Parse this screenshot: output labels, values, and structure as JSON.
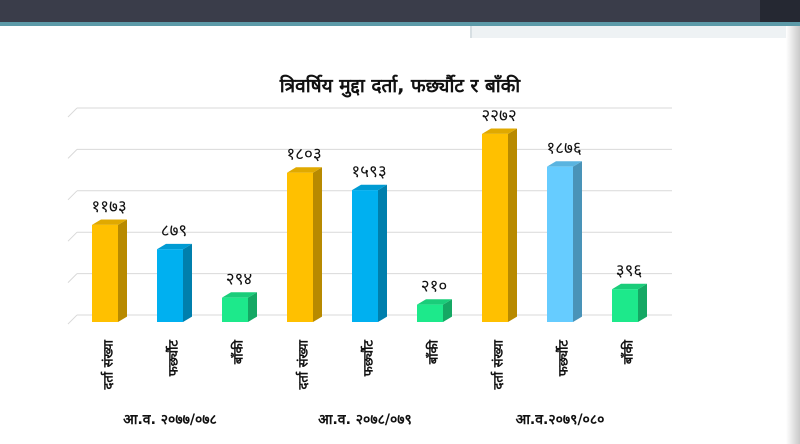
{
  "chart_data": {
    "type": "bar",
    "title": "त्रिवर्षिय मुद्दा दर्ता, फर्छ्यौट र बाँकी",
    "groups": [
      {
        "label": "आ.व. २०७७/०७८",
        "bars": [
          {
            "category": "दर्ता संख्या",
            "value": 1173,
            "value_label": "११७३",
            "color": "#ffc000"
          },
          {
            "category": "फर्छ्यौट",
            "value": 879,
            "value_label": "८७९",
            "color": "#00b0f0"
          },
          {
            "category": "बाँकी",
            "value": 294,
            "value_label": "२९४",
            "color": "#1de98b"
          }
        ]
      },
      {
        "label": "आ.व. २०७८/०७९",
        "bars": [
          {
            "category": "दर्ता संख्या",
            "value": 1803,
            "value_label": "१८०३",
            "color": "#ffc000"
          },
          {
            "category": "फर्छ्यौट",
            "value": 1593,
            "value_label": "१५९३",
            "color": "#00b0f0"
          },
          {
            "category": "बाँकी",
            "value": 210,
            "value_label": "२१०",
            "color": "#1de98b"
          }
        ]
      },
      {
        "label": "आ.व.२०७९/०८०",
        "bars": [
          {
            "category": "दर्ता संख्या",
            "value": 2272,
            "value_label": "२२७२",
            "color": "#ffc000"
          },
          {
            "category": "फर्छ्यौट",
            "value": 1876,
            "value_label": "१८७६",
            "color": "#66ccff"
          },
          {
            "category": "बाँकी",
            "value": 396,
            "value_label": "३९६",
            "color": "#1de98b"
          }
        ]
      }
    ],
    "ylim": [
      0,
      2500
    ],
    "grid": true,
    "legend": "none"
  }
}
